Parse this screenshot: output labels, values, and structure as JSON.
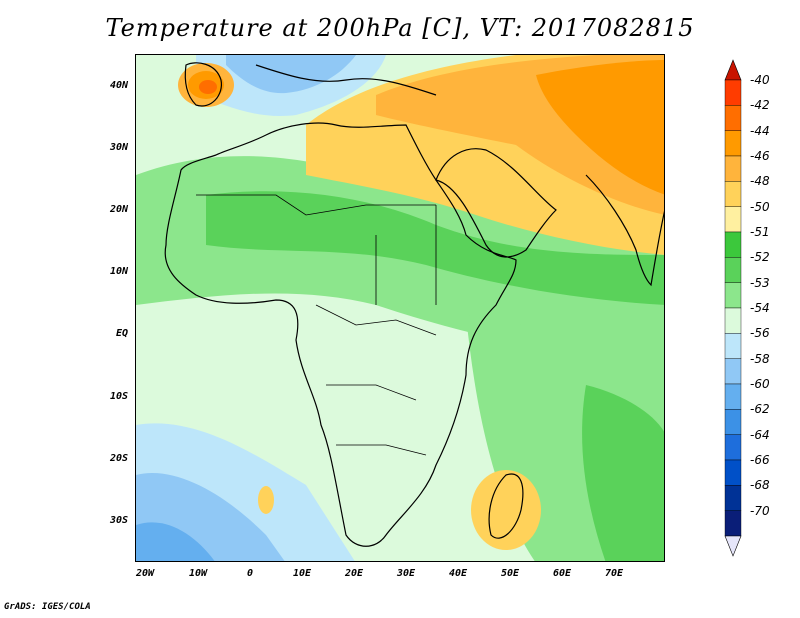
{
  "title": "Temperature at 200hPa [C], VT: 2017082815",
  "footer": "GrADS: IGES/COLA",
  "lat_labels": [
    "40N",
    "30N",
    "20N",
    "10N",
    "EQ",
    "10S",
    "20S",
    "30S"
  ],
  "lon_labels": [
    "20W",
    "10W",
    "0",
    "10E",
    "20E",
    "30E",
    "40E",
    "50E",
    "60E",
    "70E"
  ],
  "colorbar": {
    "labels": [
      "-40",
      "-42",
      "-44",
      "-46",
      "-48",
      "-50",
      "-51",
      "-52",
      "-53",
      "-54",
      "-56",
      "-58",
      "-60",
      "-62",
      "-64",
      "-66",
      "-68",
      "-70"
    ],
    "colors": [
      "#ff3c00",
      "#ff6e00",
      "#ff9a00",
      "#ffb43c",
      "#ffd25a",
      "#fff0a0",
      "#3cc83c",
      "#5ad25a",
      "#8ce68c",
      "#dcfadc",
      "#bde6fa",
      "#90c8f5",
      "#64afef",
      "#3c91e6",
      "#1e6edc",
      "#0050c8",
      "#003296",
      "#0a1e78"
    ],
    "top_arrow_color": "#c81400",
    "bottom_arrow_color": "#e6e6fa"
  },
  "colors": {
    "map_base": "#dcfadc",
    "warm_band": "#ffd25a",
    "hot_core": "#ff9a00",
    "green_band": "#5ad25a",
    "cool_sea": "#90c8f5",
    "coast": "#000000"
  }
}
